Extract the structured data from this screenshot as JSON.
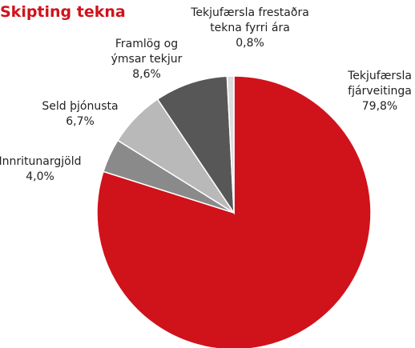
{
  "chart_data": {
    "type": "pie",
    "title": "Skipting tekna",
    "categories": [
      "Tekjufærsla\nfjárveitinga",
      "Innritunargjöld",
      "Seld þjónusta",
      "Framlög og\nýmsar tekjur",
      "Tekjufærsla frestaðra\ntekna fyrri ára"
    ],
    "values": [
      79.8,
      4.0,
      6.7,
      8.6,
      0.8
    ],
    "value_labels": [
      "79,8%",
      "4,0%",
      "6,7%",
      "8,6%",
      "0,8%"
    ],
    "colors": [
      "#d0121b",
      "#8a8a8a",
      "#b9b9b9",
      "#575757",
      "#dcdcdc"
    ]
  }
}
